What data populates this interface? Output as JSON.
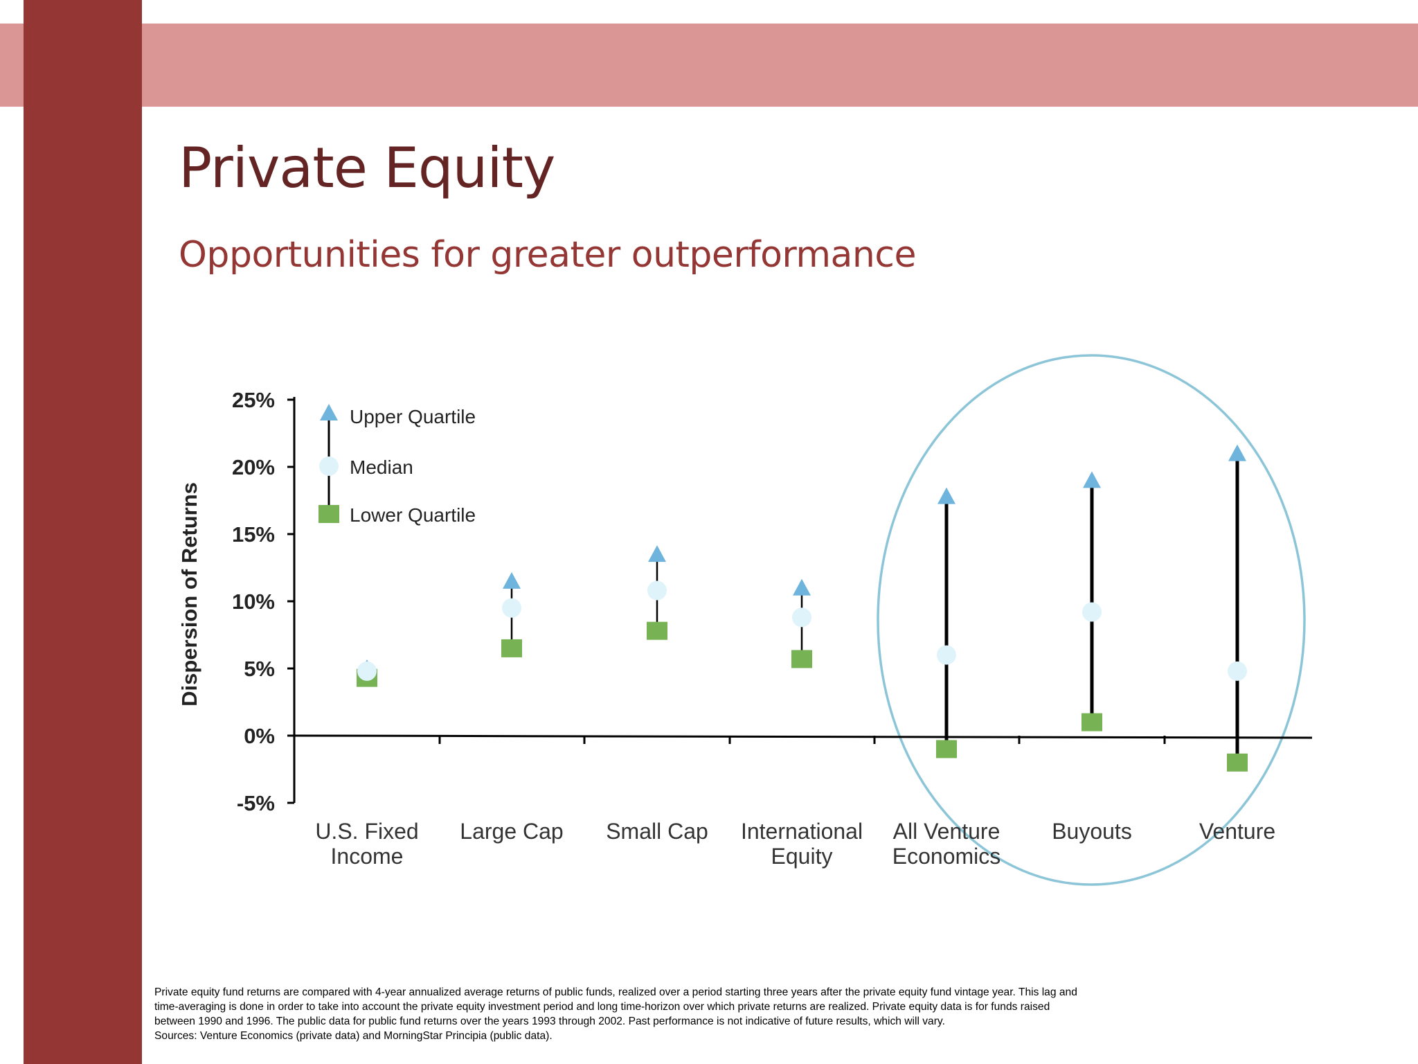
{
  "slide": {
    "title": "Private Equity",
    "subtitle": "Opportunities for greater outperformance",
    "colors": {
      "band": "#d99694",
      "side_bar": "#943634",
      "title": "#632423",
      "subtitle": "#943634",
      "upper_marker": "#6fb4dc",
      "median_marker": "#dff3fa",
      "lower_marker": "#77b255",
      "highlight_ring": "#7fbfd4"
    },
    "footnote": [
      "Private equity fund returns are compared with 4-year annualized average returns of public funds, realized over a period starting three years after the private equity fund vintage year. This lag and",
      "time-averaging is done in order to take into account the private equity investment period and long time-horizon over which private returns are realized.  Private equity data is for funds raised",
      "between 1990 and 1996. The public data for public fund returns over the years 1993 through 2002.  Past performance is not indicative of future results, which will vary.",
      "Sources: Venture Economics (private data) and MorningStar Principia (public data)."
    ]
  },
  "chart_data": {
    "type": "scatter",
    "ylabel": "Dispersion of Returns",
    "xlabel": "",
    "ylim": [
      -5,
      25
    ],
    "yticks": [
      "25%",
      "20%",
      "15%",
      "10%",
      "5%",
      "0%",
      "-5%"
    ],
    "legend": {
      "placement": "top-left",
      "entries": [
        "Upper Quartile",
        "Median",
        "Lower Quartile"
      ]
    },
    "categories": [
      [
        "U.S. Fixed",
        "Income"
      ],
      [
        "Large Cap"
      ],
      [
        "Small Cap"
      ],
      [
        "International",
        "Equity"
      ],
      [
        "All Venture",
        "Economics"
      ],
      [
        "Buyouts"
      ],
      [
        "Venture"
      ]
    ],
    "series": [
      {
        "name": "Upper Quartile",
        "values": [
          5,
          11.5,
          13.5,
          11,
          17.8,
          19,
          21
        ]
      },
      {
        "name": "Median",
        "values": [
          4.8,
          9.5,
          10.8,
          8.8,
          6,
          9.2,
          4.8
        ]
      },
      {
        "name": "Lower Quartile",
        "values": [
          4.3,
          6.5,
          7.8,
          5.7,
          -1,
          1,
          -2
        ]
      }
    ],
    "highlight": "All Venture Economics, Buyouts, Venture circled"
  }
}
